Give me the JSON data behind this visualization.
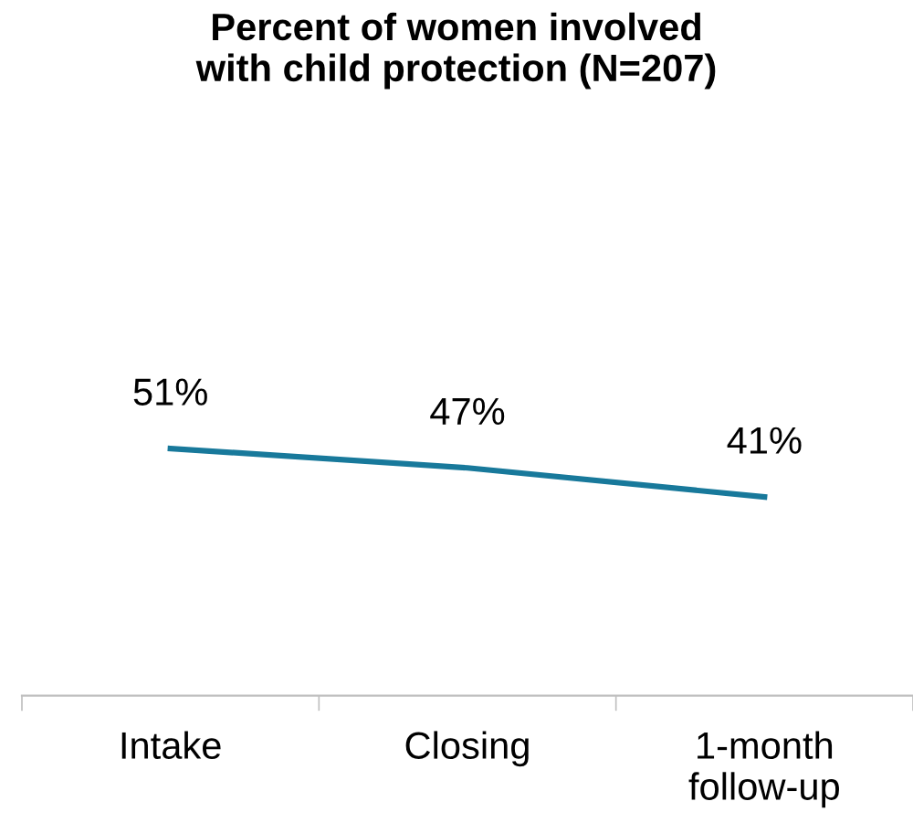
{
  "chart_data": {
    "type": "line",
    "title": "Percent of women involved\nwith child protection (N=207)",
    "categories": [
      "Intake",
      "Closing",
      "1-month\nfollow-up"
    ],
    "series": [
      {
        "color": "#18799b",
        "values": [
          51,
          47,
          41
        ],
        "value_labels": [
          "51%",
          "47%",
          "41%"
        ]
      }
    ],
    "tick_labels": "x",
    "grid": false,
    "legend": false,
    "marker": "none",
    "line_style": "solid"
  }
}
